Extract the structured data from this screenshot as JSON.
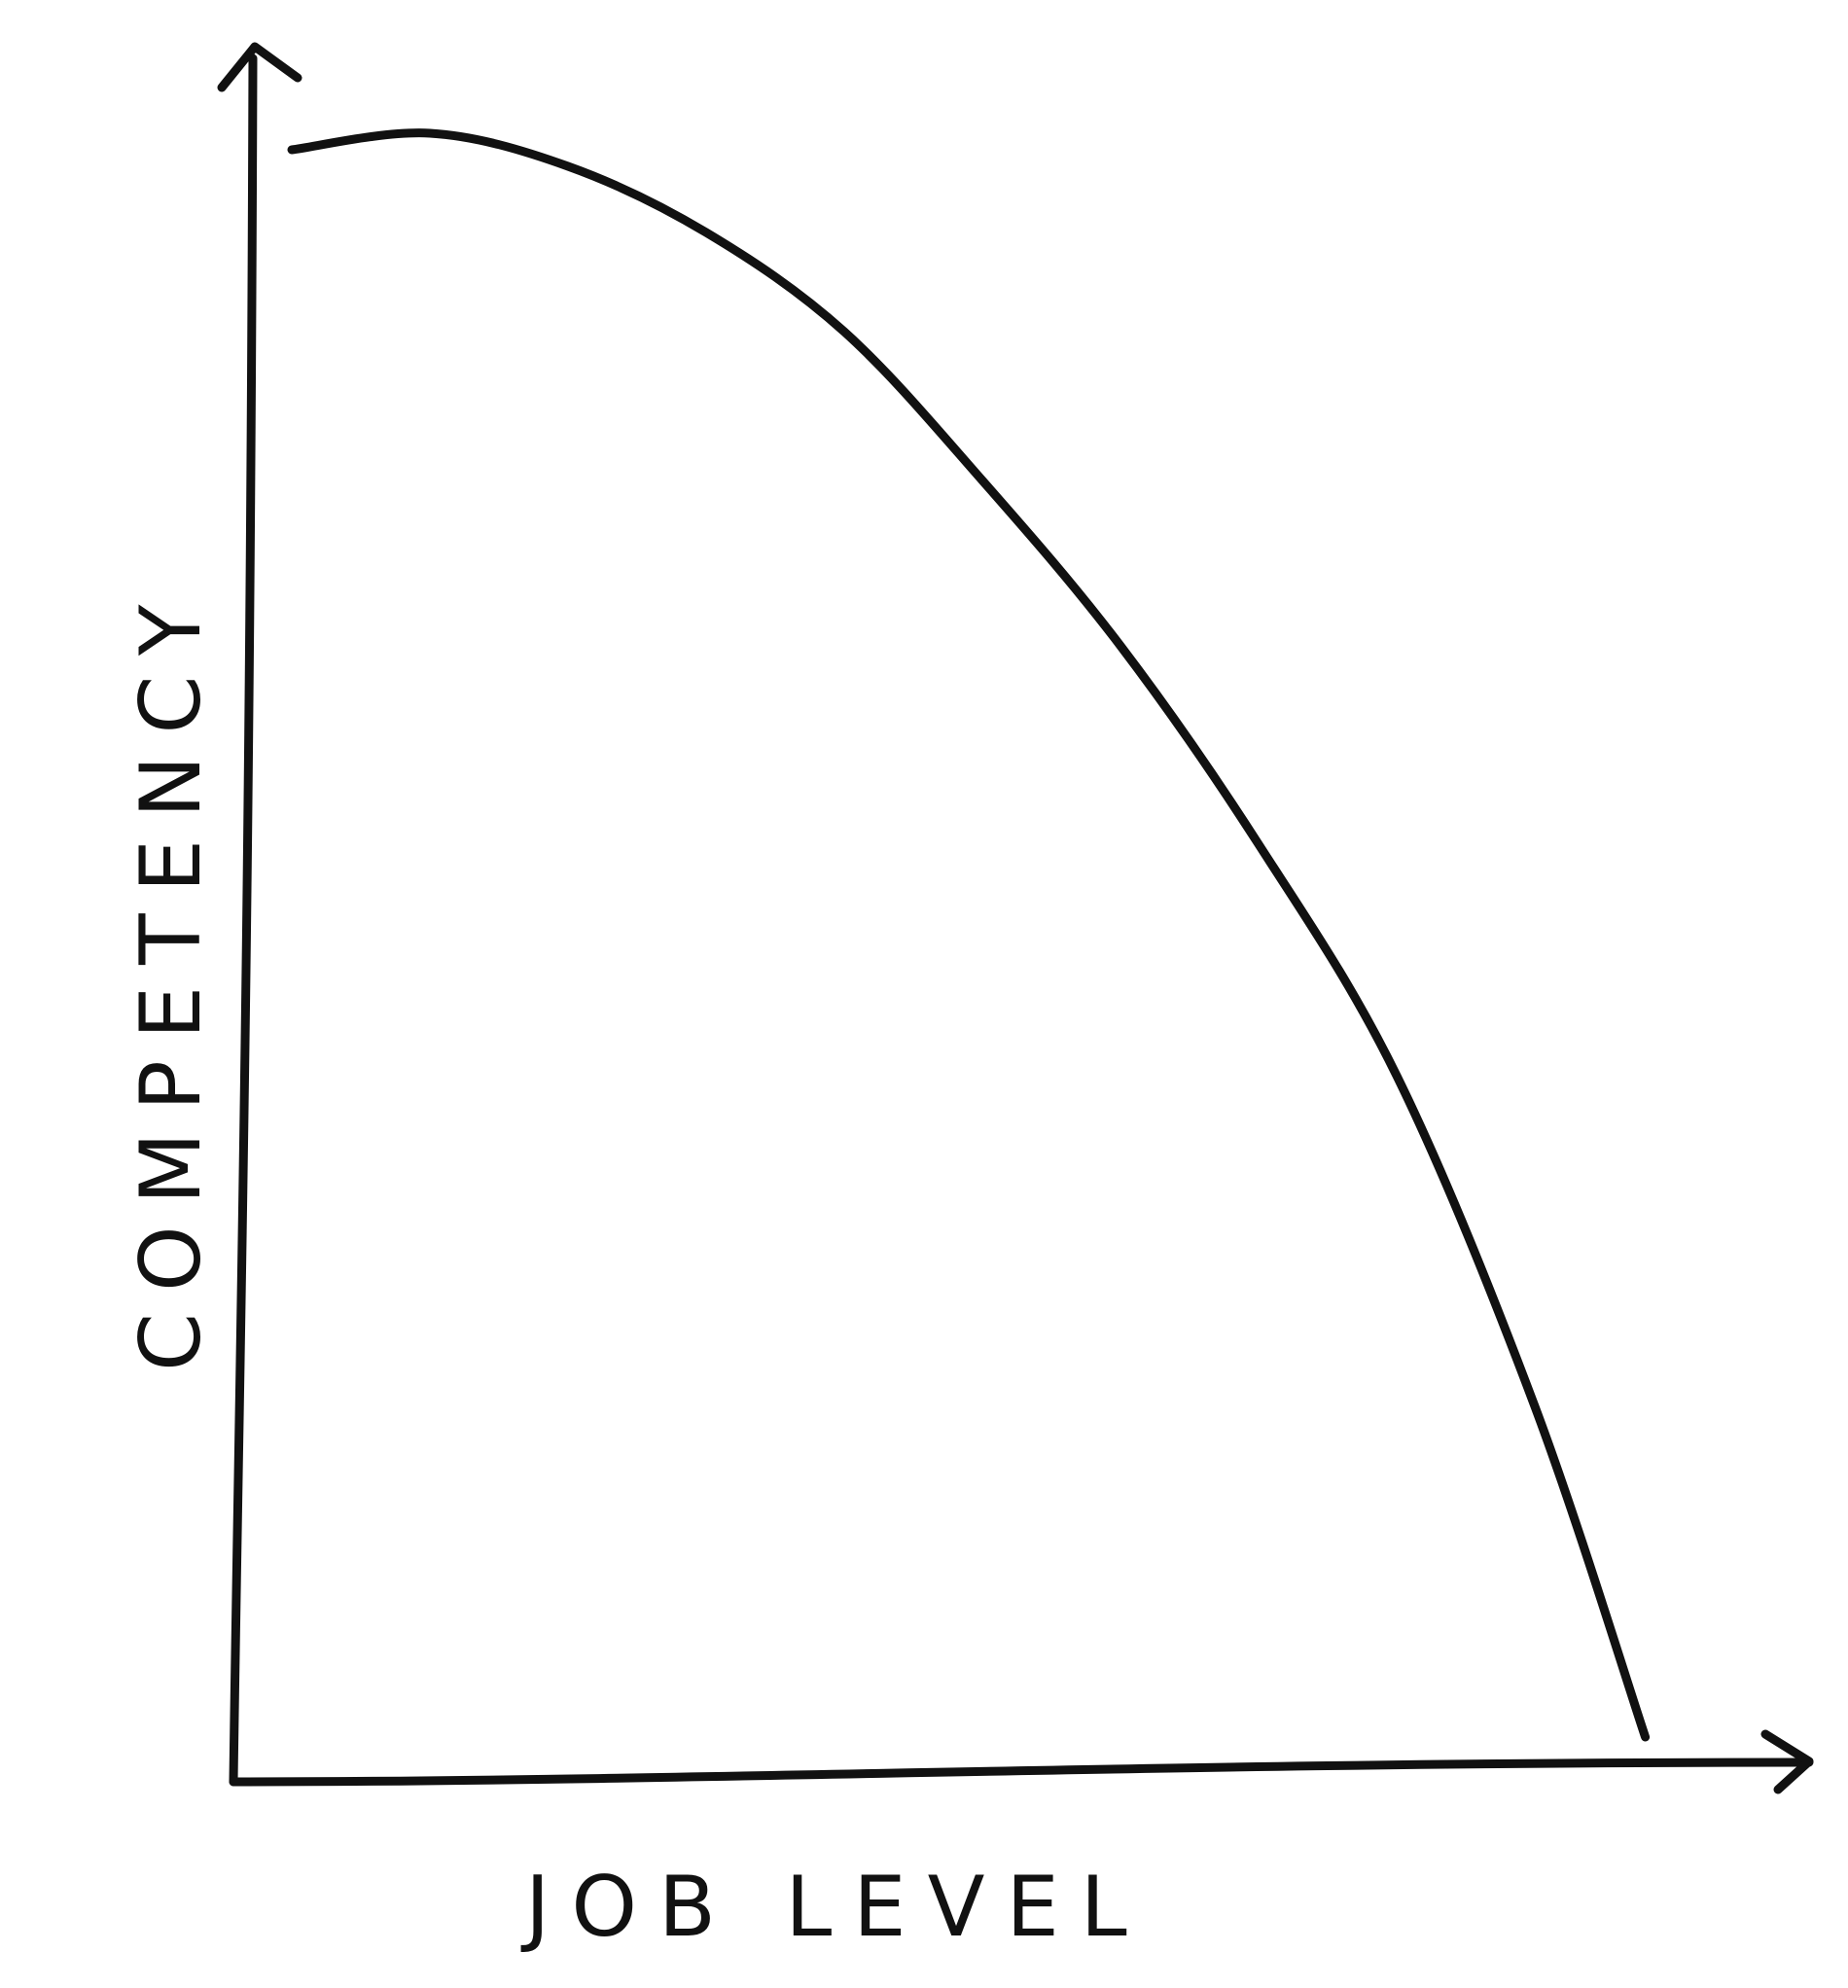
{
  "chart_data": {
    "type": "line",
    "title": "",
    "xlabel": "JOB LEVEL",
    "ylabel": "COMPETENCY",
    "ylim": [
      0,
      1
    ],
    "xlim": [
      0,
      1
    ],
    "grid": false,
    "legend": "none",
    "series": [
      {
        "values": [
          {
            "x": 0.0,
            "y": 0.98
          },
          {
            "x": 0.1,
            "y": 0.99
          },
          {
            "x": 0.2,
            "y": 0.97
          },
          {
            "x": 0.3,
            "y": 0.93
          },
          {
            "x": 0.4,
            "y": 0.87
          },
          {
            "x": 0.5,
            "y": 0.78
          },
          {
            "x": 0.6,
            "y": 0.68
          },
          {
            "x": 0.7,
            "y": 0.56
          },
          {
            "x": 0.8,
            "y": 0.42
          },
          {
            "x": 0.9,
            "y": 0.22
          },
          {
            "x": 0.98,
            "y": 0.02
          }
        ]
      }
    ]
  },
  "colors": {
    "ink": "#111111",
    "background": "#ffffff"
  }
}
